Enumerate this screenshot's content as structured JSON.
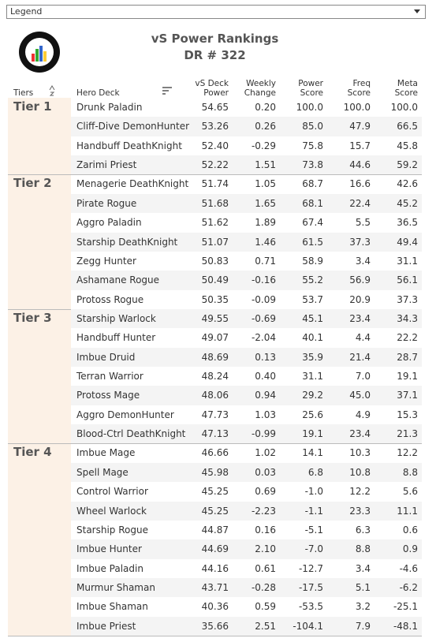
{
  "legend": {
    "label": "Legend"
  },
  "header": {
    "title": "vS Power Rankings",
    "subtitle": "DR # 322"
  },
  "table": {
    "columns": [
      "Tiers",
      "Hero Deck",
      "vS Deck Power",
      "Weekly Change",
      "Power Score",
      "Freq Score",
      "Meta Score"
    ],
    "tiers": [
      {
        "name": "Tier 1",
        "rows": [
          [
            "Drunk Paladin",
            "54.65",
            "0.20",
            "100.0",
            "100.0",
            "100.0"
          ],
          [
            "Cliff-Dive DemonHunter",
            "53.26",
            "0.26",
            "85.0",
            "47.9",
            "66.5"
          ],
          [
            "Handbuff DeathKnight",
            "52.40",
            "-0.29",
            "75.8",
            "15.7",
            "45.8"
          ],
          [
            "Zarimi Priest",
            "52.22",
            "1.51",
            "73.8",
            "44.6",
            "59.2"
          ]
        ]
      },
      {
        "name": "Tier 2",
        "rows": [
          [
            "Menagerie DeathKnight",
            "51.74",
            "1.05",
            "68.7",
            "16.6",
            "42.6"
          ],
          [
            "Pirate Rogue",
            "51.68",
            "1.65",
            "68.1",
            "22.4",
            "45.2"
          ],
          [
            "Aggro Paladin",
            "51.62",
            "1.89",
            "67.4",
            "5.5",
            "36.5"
          ],
          [
            "Starship DeathKnight",
            "51.07",
            "1.46",
            "61.5",
            "37.3",
            "49.4"
          ],
          [
            "Zegg Hunter",
            "50.83",
            "0.71",
            "58.9",
            "3.4",
            "31.1"
          ],
          [
            "Ashamane Rogue",
            "50.49",
            "-0.16",
            "55.2",
            "56.9",
            "56.1"
          ],
          [
            "Protoss Rogue",
            "50.35",
            "-0.09",
            "53.7",
            "20.9",
            "37.3"
          ]
        ]
      },
      {
        "name": "Tier 3",
        "rows": [
          [
            "Starship Warlock",
            "49.55",
            "-0.69",
            "45.1",
            "23.4",
            "34.3"
          ],
          [
            "Handbuff Hunter",
            "49.07",
            "-2.04",
            "40.1",
            "4.4",
            "22.2"
          ],
          [
            "Imbue Druid",
            "48.69",
            "0.13",
            "35.9",
            "21.4",
            "28.7"
          ],
          [
            "Terran Warrior",
            "48.24",
            "0.40",
            "31.1",
            "7.0",
            "19.1"
          ],
          [
            "Protoss Mage",
            "48.06",
            "0.94",
            "29.2",
            "45.0",
            "37.1"
          ],
          [
            "Aggro DemonHunter",
            "47.73",
            "1.03",
            "25.6",
            "4.9",
            "15.3"
          ],
          [
            "Blood-Ctrl DeathKnight",
            "47.13",
            "-0.99",
            "19.1",
            "23.4",
            "21.3"
          ]
        ]
      },
      {
        "name": "Tier 4",
        "rows": [
          [
            "Imbue Mage",
            "46.66",
            "1.02",
            "14.1",
            "10.3",
            "12.2"
          ],
          [
            "Spell Mage",
            "45.98",
            "0.03",
            "6.8",
            "10.8",
            "8.8"
          ],
          [
            "Control Warrior",
            "45.25",
            "0.69",
            "-1.0",
            "12.2",
            "5.6"
          ],
          [
            "Wheel Warlock",
            "45.25",
            "-2.23",
            "-1.1",
            "23.3",
            "11.1"
          ],
          [
            "Starship Rogue",
            "44.87",
            "0.16",
            "-5.1",
            "6.3",
            "0.6"
          ],
          [
            "Imbue Hunter",
            "44.69",
            "2.10",
            "-7.0",
            "8.8",
            "0.9"
          ],
          [
            "Imbue Paladin",
            "44.16",
            "0.61",
            "-12.7",
            "3.4",
            "-4.6"
          ],
          [
            "Murmur Shaman",
            "43.71",
            "-0.28",
            "-17.5",
            "5.1",
            "-6.2"
          ],
          [
            "Imbue Shaman",
            "40.36",
            "0.59",
            "-53.5",
            "3.2",
            "-25.1"
          ],
          [
            "Imbue Priest",
            "35.66",
            "2.51",
            "-104.1",
            "7.9",
            "-48.1"
          ]
        ]
      }
    ]
  }
}
